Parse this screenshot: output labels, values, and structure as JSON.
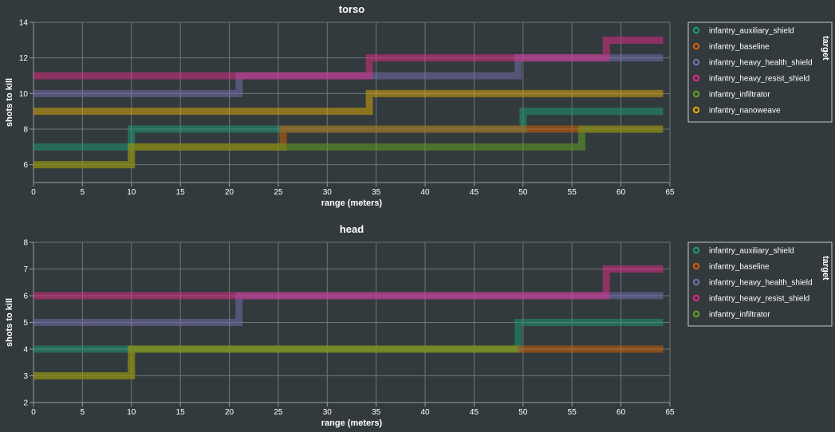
{
  "theme": {
    "background": "#333a3d",
    "grid": "#6f7578",
    "text": "#ffffff",
    "legend_border": "#c8c8c8"
  },
  "colors": {
    "infantry_auxiliary_shield": "#1b9e77",
    "infantry_baseline": "#d95f02",
    "infantry_heavy_health_shield": "#7570b3",
    "infantry_heavy_resist_shield": "#e7298a",
    "infantry_infiltrator": "#66a61e",
    "infantry_nanoweave": "#e6ab02"
  },
  "chart_data": [
    {
      "type": "line",
      "interpolation": "step",
      "title": "torso",
      "xlabel": "range (meters)",
      "ylabel": "shots to kill",
      "xlim": [
        0,
        65
      ],
      "ylim": [
        5,
        14
      ],
      "xticks": [
        0,
        5,
        10,
        15,
        20,
        25,
        30,
        35,
        40,
        45,
        50,
        55,
        60,
        65
      ],
      "yticks": [
        6,
        8,
        10,
        12,
        14
      ],
      "grid": true,
      "legend": {
        "title": "target",
        "placement": "right",
        "entries": [
          "infantry_auxiliary_shield",
          "infantry_baseline",
          "infantry_heavy_health_shield",
          "infantry_heavy_resist_shield",
          "infantry_infiltrator",
          "infantry_nanoweave"
        ]
      },
      "series": [
        {
          "name": "infantry_auxiliary_shield",
          "x": [
            0,
            10,
            50,
            64.3
          ],
          "y": [
            7,
            8,
            9,
            9
          ]
        },
        {
          "name": "infantry_baseline",
          "x": [
            0,
            10,
            25.5,
            56,
            64.3
          ],
          "y": [
            6,
            7,
            8,
            8,
            8
          ]
        },
        {
          "name": "infantry_heavy_health_shield",
          "x": [
            0,
            21,
            34.3,
            49.5,
            64.3
          ],
          "y": [
            10,
            11,
            11,
            12,
            12
          ]
        },
        {
          "name": "infantry_heavy_resist_shield",
          "x": [
            0,
            34.3,
            58.5,
            64.3
          ],
          "y": [
            11,
            12,
            13,
            13
          ]
        },
        {
          "name": "infantry_infiltrator",
          "x": [
            0,
            10,
            56,
            64.3
          ],
          "y": [
            6,
            7,
            8,
            8
          ]
        },
        {
          "name": "infantry_nanoweave",
          "x": [
            0,
            34.3,
            64.3
          ],
          "y": [
            9,
            10,
            10
          ]
        }
      ]
    },
    {
      "type": "line",
      "interpolation": "step",
      "title": "head",
      "xlabel": "range (meters)",
      "ylabel": "shots to kill",
      "xlim": [
        0,
        65
      ],
      "ylim": [
        2,
        8
      ],
      "xticks": [
        0,
        5,
        10,
        15,
        20,
        25,
        30,
        35,
        40,
        45,
        50,
        55,
        60,
        65
      ],
      "yticks": [
        2,
        3,
        4,
        5,
        6,
        7,
        8
      ],
      "grid": true,
      "legend": {
        "title": "target",
        "placement": "right",
        "entries": [
          "infantry_auxiliary_shield",
          "infantry_baseline",
          "infantry_heavy_health_shield",
          "infantry_heavy_resist_shield",
          "infantry_infiltrator"
        ]
      },
      "series": [
        {
          "name": "infantry_auxiliary_shield",
          "x": [
            0,
            10,
            49.5,
            64.3
          ],
          "y": [
            4,
            4,
            5,
            5
          ]
        },
        {
          "name": "infantry_baseline",
          "x": [
            0,
            10,
            64.3
          ],
          "y": [
            3,
            4,
            4
          ]
        },
        {
          "name": "infantry_heavy_health_shield",
          "x": [
            0,
            21,
            64.3
          ],
          "y": [
            5,
            6,
            6
          ]
        },
        {
          "name": "infantry_heavy_resist_shield",
          "x": [
            0,
            58.5,
            64.3
          ],
          "y": [
            6,
            7,
            7
          ]
        },
        {
          "name": "infantry_infiltrator",
          "x": [
            0,
            10,
            49.5
          ],
          "y": [
            3,
            4,
            4
          ]
        }
      ]
    }
  ]
}
